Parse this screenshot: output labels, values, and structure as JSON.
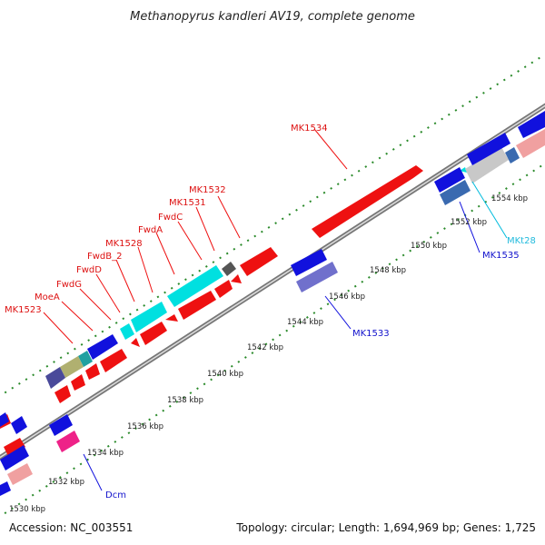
{
  "title": "Methanopyrus kandleri AV19, complete genome",
  "footer": {
    "accession": "Accession: NC_003551",
    "topology": "Topology: circular; Length: 1,694,969 bp; Genes: 1,725"
  },
  "scale_labels": [
    "1530 kbp",
    "1532 kbp",
    "1534 kbp",
    "1536 kbp",
    "1538 kbp",
    "1540 kbp",
    "1542 kbp",
    "1544 kbp",
    "1546 kbp",
    "1548 kbp",
    "1550 kbp",
    "1552 kbp",
    "1554 kbp"
  ],
  "gene_labels_red": [
    "MK1523",
    "MoeA",
    "FwdG",
    "FwdD",
    "FwdB_2",
    "MK1528",
    "FwdA",
    "FwdC",
    "MK1531",
    "MK1532",
    "MK1534"
  ],
  "gene_labels_blue": [
    "MK1533",
    "MK1535",
    "Dcm"
  ],
  "gene_labels_cyan": [
    "MKt28"
  ],
  "colors": {
    "backbone": "#888888",
    "forward_gene": "#ee1111",
    "reverse_gene": "#1111dd",
    "rna": "#00dddd",
    "tick": "#2a8a2a"
  }
}
